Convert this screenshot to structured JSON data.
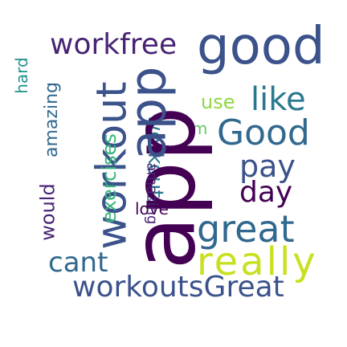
{
  "word_cloud": {
    "colors": {
      "background": "#ffffff",
      "dark_purple": "#440154",
      "indigo": "#3b528b",
      "blue": "#31688e",
      "teal": "#21918c",
      "teal_dark": "#2a788e",
      "green": "#35b779",
      "light_green": "#5ec962",
      "lime": "#90d743",
      "yellow": "#c8e020",
      "grey_purple": "#482475"
    },
    "words": {
      "workfree": "workfree",
      "good": "good",
      "like": "like",
      "use": "use",
      "Good": "Good",
      "Im": "Im",
      "pay": "pay",
      "day": "day",
      "love": "love",
      "great": "great",
      "really": "really",
      "cant": "cant",
      "workoutsGreat": "workoutsGreat",
      "would": "would",
      "amazing": "amazing",
      "workout": "workout",
      "exercises": "exercises",
      "workouts_vertical": "workouts",
      "app": "app",
      "app_small": "app",
      "amazing_upside": "amazing",
      "hard": "hard"
    }
  }
}
